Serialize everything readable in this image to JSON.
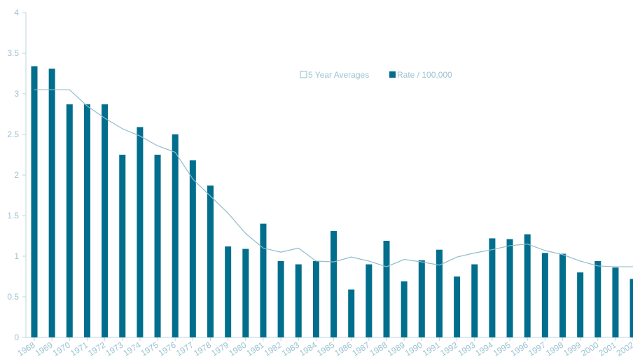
{
  "chart_data": {
    "type": "bar",
    "title": "",
    "xlabel": "",
    "ylabel": "",
    "ylim": [
      0,
      4
    ],
    "yticks": [
      "0",
      "0.5",
      "1",
      "1.5",
      "2",
      "2.5",
      "3",
      "3.5",
      "4"
    ],
    "categories": [
      "1968",
      "1969",
      "1970",
      "1971",
      "1972",
      "1973",
      "1974",
      "1975",
      "1976",
      "1977",
      "1978",
      "1979",
      "1980",
      "1981",
      "1982",
      "1983",
      "1984",
      "1985",
      "1986",
      "1987",
      "1988",
      "1989",
      "1990",
      "1991",
      "1992",
      "1993",
      "1994",
      "1995",
      "1996",
      "1997",
      "1998",
      "1999",
      "2000",
      "2001",
      "2002"
    ],
    "series": [
      {
        "name": "Rate / 100,000",
        "kind": "bar",
        "color": "#006e8c",
        "values": [
          3.34,
          3.31,
          2.87,
          2.87,
          2.87,
          2.25,
          2.59,
          2.25,
          2.5,
          2.18,
          1.87,
          1.12,
          1.09,
          1.4,
          0.94,
          0.9,
          0.94,
          1.31,
          0.59,
          0.9,
          1.19,
          0.69,
          0.95,
          1.08,
          0.75,
          0.9,
          1.22,
          1.21,
          1.27,
          1.04,
          1.03,
          0.8,
          0.94,
          0.86,
          0.72
        ]
      },
      {
        "name": "5 Year Averages",
        "kind": "line",
        "color": "#8fbccc",
        "values": [
          3.05,
          3.05,
          3.05,
          2.85,
          2.7,
          2.57,
          2.48,
          2.36,
          2.28,
          1.95,
          1.74,
          1.53,
          1.28,
          1.1,
          1.05,
          1.1,
          0.94,
          0.93,
          0.99,
          0.94,
          0.87,
          0.96,
          0.93,
          0.89,
          0.99,
          1.04,
          1.08,
          1.13,
          1.15,
          1.07,
          1.02,
          0.94,
          0.88,
          0.87,
          0.87
        ]
      }
    ],
    "legend": {
      "placement": "upper-middle",
      "items": [
        "5 Year Averages",
        "Rate / 100,000"
      ]
    },
    "colors": {
      "axis": "#b9d6e0",
      "tick_text": "#9cc3d1"
    }
  }
}
